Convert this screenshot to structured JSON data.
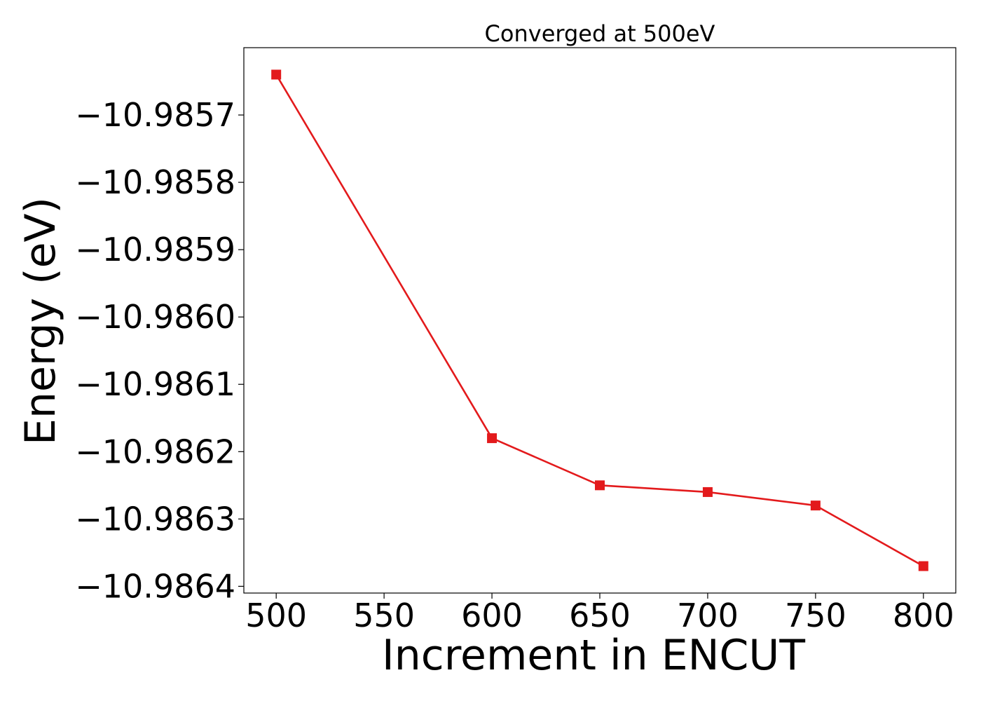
{
  "chart_data": {
    "type": "line",
    "title": "Converged at 500eV",
    "xlabel": "Increment in ENCUT",
    "ylabel": "Energy (eV)",
    "x": [
      500,
      600,
      650,
      700,
      750,
      800
    ],
    "series": [
      {
        "values": [
          -10.98564,
          -10.98618,
          -10.98625,
          -10.98626,
          -10.98628,
          -10.98637
        ],
        "color": "#e31a1c",
        "marker": "square"
      }
    ],
    "xticks": [
      500,
      550,
      600,
      650,
      700,
      750,
      800
    ],
    "xtick_labels": [
      "500",
      "550",
      "600",
      "650",
      "700",
      "750",
      "800"
    ],
    "yticks": [
      -10.9857,
      -10.9858,
      -10.9859,
      -10.986,
      -10.9861,
      -10.9862,
      -10.9863,
      -10.9864
    ],
    "ytick_labels": [
      "−10.9857",
      "−10.9858",
      "−10.9859",
      "−10.9860",
      "−10.9861",
      "−10.9862",
      "−10.9863",
      "−10.9864"
    ],
    "xlim": [
      485,
      815
    ],
    "ylim": [
      -10.98641,
      -10.9856
    ],
    "grid": false,
    "legend": "none"
  }
}
